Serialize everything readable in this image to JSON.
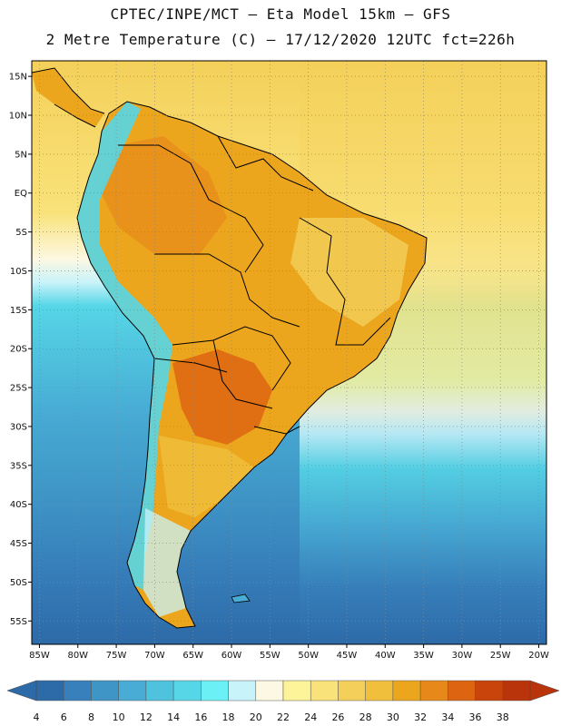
{
  "header": {
    "line1": "CPTEC/INPE/MCT –  Eta Model 15km – GFS",
    "line2": "2 Metre Temperature (C) – 17/12/2020 12UTC fct=226h"
  },
  "map": {
    "lon_range": [
      -86,
      -19
    ],
    "lat_range": [
      -58,
      17
    ],
    "lat_ticks": [
      "15N",
      "10N",
      "5N",
      "EQ",
      "5S",
      "10S",
      "15S",
      "20S",
      "25S",
      "30S",
      "35S",
      "40S",
      "45S",
      "50S",
      "55S"
    ],
    "lat_values": [
      15,
      10,
      5,
      0,
      -5,
      -10,
      -15,
      -20,
      -25,
      -30,
      -35,
      -40,
      -45,
      -50,
      -55
    ],
    "lon_ticks": [
      "85W",
      "80W",
      "75W",
      "70W",
      "65W",
      "60W",
      "55W",
      "50W",
      "45W",
      "40W",
      "35W",
      "30W",
      "25W",
      "20W"
    ],
    "lon_values": [
      -85,
      -80,
      -75,
      -70,
      -65,
      -60,
      -55,
      -50,
      -45,
      -40,
      -35,
      -30,
      -25,
      -20
    ]
  },
  "colorbar": {
    "labels": [
      "4",
      "6",
      "8",
      "10",
      "12",
      "14",
      "16",
      "18",
      "20",
      "22",
      "24",
      "26",
      "28",
      "30",
      "32",
      "34",
      "36",
      "38"
    ],
    "colors": [
      "#2d6aa8",
      "#3780bb",
      "#3f96c6",
      "#48acd4",
      "#4fc2dd",
      "#56d6e6",
      "#6af0f5",
      "#c8f3fa",
      "#fdf8e3",
      "#fdf49a",
      "#f9e27a",
      "#f4d05a",
      "#f0bf3c",
      "#eca61e",
      "#e7891a",
      "#dd6511",
      "#c9440b",
      "#b9330b"
    ]
  }
}
